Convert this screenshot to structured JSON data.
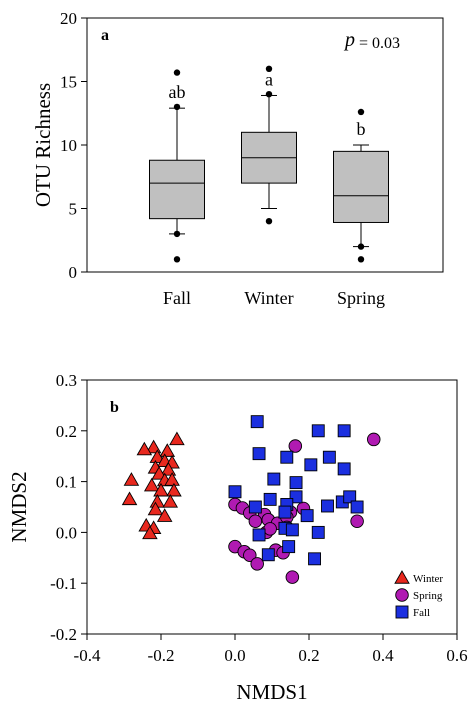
{
  "chart_data": [
    {
      "type": "box",
      "panel_label": "a",
      "ylabel": "OTU Richness",
      "ylim": [
        0,
        20
      ],
      "yticks": [
        0,
        5,
        10,
        15,
        20
      ],
      "categories": [
        "Fall",
        "Winter",
        "Spring"
      ],
      "annotation": {
        "p_symbol": "p",
        "p_text": "= 0.03"
      },
      "boxes": [
        {
          "category": "Fall",
          "q1": 4.2,
          "median": 7.0,
          "q3": 8.8,
          "whisker_low": 3.0,
          "whisker_high": 12.9,
          "outliers": [
            1.0,
            3.0,
            13.0,
            15.7
          ],
          "letter": "ab"
        },
        {
          "category": "Winter",
          "q1": 7.0,
          "median": 9.0,
          "q3": 11.0,
          "whisker_low": 5.0,
          "whisker_high": 13.9,
          "outliers": [
            4.0,
            14.0,
            16.0
          ],
          "letter": "a"
        },
        {
          "category": "Spring",
          "q1": 3.9,
          "median": 6.0,
          "q3": 9.5,
          "whisker_low": 2.0,
          "whisker_high": 10.0,
          "outliers": [
            1.0,
            2.0,
            12.6
          ],
          "letter": "b"
        }
      ],
      "box_color": "#c0c0c0"
    },
    {
      "type": "scatter",
      "panel_label": "b",
      "xlabel": "NMDS1",
      "ylabel": "NMDS2",
      "xlim": [
        -0.4,
        0.6
      ],
      "ylim": [
        -0.2,
        0.3
      ],
      "xticks": [
        -0.4,
        -0.2,
        0.0,
        0.2,
        0.4,
        0.6
      ],
      "yticks": [
        -0.2,
        -0.1,
        0.0,
        0.1,
        0.2,
        0.3
      ],
      "legend_position": "bottom-right",
      "series": [
        {
          "name": "Winter",
          "marker": "triangle",
          "color": "#e8281e",
          "points": [
            [
              -0.157,
              0.183
            ],
            [
              -0.22,
              0.167
            ],
            [
              -0.245,
              0.163
            ],
            [
              -0.183,
              0.16
            ],
            [
              -0.21,
              0.148
            ],
            [
              -0.19,
              0.14
            ],
            [
              -0.17,
              0.137
            ],
            [
              -0.215,
              0.127
            ],
            [
              -0.18,
              0.123
            ],
            [
              -0.205,
              0.115
            ],
            [
              -0.28,
              0.103
            ],
            [
              -0.19,
              0.102
            ],
            [
              -0.17,
              0.103
            ],
            [
              -0.225,
              0.092
            ],
            [
              -0.2,
              0.082
            ],
            [
              -0.165,
              0.082
            ],
            [
              -0.285,
              0.065
            ],
            [
              -0.21,
              0.06
            ],
            [
              -0.175,
              0.06
            ],
            [
              -0.215,
              0.045
            ],
            [
              -0.19,
              0.032
            ],
            [
              -0.24,
              0.013
            ],
            [
              -0.22,
              0.008
            ],
            [
              -0.23,
              -0.002
            ]
          ]
        },
        {
          "name": "Spring",
          "marker": "circle",
          "color": "#b01ab2",
          "points": [
            [
              0.375,
              0.183
            ],
            [
              0.163,
              0.17
            ],
            [
              0.0,
              0.055
            ],
            [
              0.02,
              0.048
            ],
            [
              0.04,
              0.038
            ],
            [
              0.08,
              0.035
            ],
            [
              0.09,
              0.025
            ],
            [
              0.15,
              0.04
            ],
            [
              0.185,
              0.047
            ],
            [
              0.055,
              0.022
            ],
            [
              0.115,
              0.018
            ],
            [
              0.14,
              0.03
            ],
            [
              0.33,
              0.022
            ],
            [
              0.085,
              0.0
            ],
            [
              0.095,
              0.007
            ],
            [
              0.14,
              0.01
            ],
            [
              0.0,
              -0.028
            ],
            [
              0.025,
              -0.038
            ],
            [
              0.04,
              -0.045
            ],
            [
              0.11,
              -0.035
            ],
            [
              0.13,
              -0.04
            ],
            [
              0.06,
              -0.062
            ],
            [
              0.155,
              -0.088
            ]
          ]
        },
        {
          "name": "Fall",
          "marker": "square",
          "color": "#1b2fe0",
          "points": [
            [
              0.06,
              0.218
            ],
            [
              0.225,
              0.2
            ],
            [
              0.295,
              0.2
            ],
            [
              0.065,
              0.155
            ],
            [
              0.14,
              0.148
            ],
            [
              0.255,
              0.148
            ],
            [
              0.205,
              0.133
            ],
            [
              0.295,
              0.125
            ],
            [
              0.105,
              0.105
            ],
            [
              0.165,
              0.098
            ],
            [
              0.0,
              0.08
            ],
            [
              0.165,
              0.07
            ],
            [
              0.29,
              0.06
            ],
            [
              0.31,
              0.07
            ],
            [
              0.095,
              0.065
            ],
            [
              0.14,
              0.055
            ],
            [
              0.055,
              0.05
            ],
            [
              0.135,
              0.04
            ],
            [
              0.195,
              0.033
            ],
            [
              0.25,
              0.052
            ],
            [
              0.33,
              0.05
            ],
            [
              0.135,
              0.008
            ],
            [
              0.155,
              0.005
            ],
            [
              0.225,
              0.0
            ],
            [
              0.065,
              -0.005
            ],
            [
              0.145,
              -0.028
            ],
            [
              0.09,
              -0.044
            ],
            [
              0.215,
              -0.052
            ]
          ]
        }
      ]
    }
  ]
}
